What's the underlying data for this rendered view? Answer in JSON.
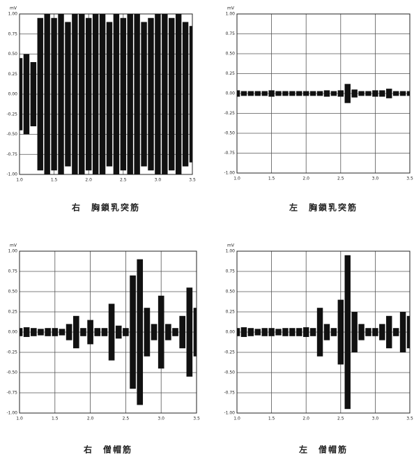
{
  "chart_data": [
    {
      "type": "envelope",
      "title": "右　胸鎖乳突筋",
      "y_unit": "mV",
      "x": [
        1.0,
        1.1,
        1.2,
        1.3,
        1.4,
        1.5,
        1.6,
        1.7,
        1.8,
        1.9,
        2.0,
        2.1,
        2.2,
        2.3,
        2.4,
        2.5,
        2.6,
        2.7,
        2.8,
        2.9,
        3.0,
        3.1,
        3.2,
        3.3,
        3.4,
        3.5
      ],
      "values": [
        0.45,
        0.5,
        0.4,
        0.95,
        1,
        0.95,
        1,
        0.9,
        1,
        1,
        0.95,
        1,
        1,
        0.9,
        1,
        0.95,
        1,
        1,
        0.9,
        0.95,
        1,
        1,
        0.95,
        1,
        0.9,
        0.85
      ],
      "color": "#111111",
      "xlim": [
        1.0,
        3.5
      ],
      "xticks": [
        {
          "value": 1,
          "label": "1.0"
        },
        1.5,
        {
          "value": 2,
          "label": "2.0"
        },
        2.5,
        {
          "value": 3,
          "label": "3.0"
        },
        3.5
      ],
      "ylim": [
        -1,
        1
      ],
      "yticks": [
        {
          "value": 1,
          "label": "1.00"
        },
        0.75,
        {
          "value": 0.5,
          "label": "0.50"
        },
        0.25,
        {
          "value": 0,
          "label": "0.00"
        },
        -0.25,
        {
          "value": -0.5,
          "label": "-0.50"
        },
        -0.75,
        {
          "value": -1,
          "label": "-1.00"
        }
      ],
      "grid": true
    },
    {
      "type": "envelope",
      "title": "左　胸鎖乳突筋",
      "y_unit": "mV",
      "x": [
        1.0,
        1.1,
        1.2,
        1.3,
        1.4,
        1.5,
        1.6,
        1.7,
        1.8,
        1.9,
        2.0,
        2.1,
        2.2,
        2.3,
        2.4,
        2.5,
        2.6,
        2.7,
        2.8,
        2.9,
        3.0,
        3.1,
        3.2,
        3.3,
        3.4,
        3.5
      ],
      "values": [
        0.04,
        0.03,
        0.03,
        0.03,
        0.03,
        0.04,
        0.03,
        0.03,
        0.03,
        0.03,
        0.03,
        0.03,
        0.03,
        0.04,
        0.03,
        0.04,
        0.12,
        0.05,
        0.03,
        0.03,
        0.04,
        0.04,
        0.06,
        0.03,
        0.03,
        0.03
      ],
      "color": "#111111",
      "xlim": [
        1.0,
        3.5
      ],
      "xticks": [
        {
          "value": 1,
          "label": "1.0"
        },
        1.5,
        {
          "value": 2,
          "label": "2.0"
        },
        2.5,
        {
          "value": 3,
          "label": "3.0"
        },
        3.5
      ],
      "ylim": [
        -1,
        1
      ],
      "yticks": [
        {
          "value": 1,
          "label": "1.00"
        },
        0.75,
        {
          "value": 0.5,
          "label": "0.50"
        },
        0.25,
        {
          "value": 0,
          "label": "0.00"
        },
        -0.25,
        {
          "value": -0.5,
          "label": "-0.50"
        },
        -0.75,
        {
          "value": -1,
          "label": "-1.00"
        }
      ],
      "grid": true
    },
    {
      "type": "envelope",
      "title": "右　僧帽筋",
      "y_unit": "mV",
      "x": [
        1.0,
        1.1,
        1.2,
        1.3,
        1.4,
        1.5,
        1.6,
        1.7,
        1.8,
        1.9,
        2.0,
        2.1,
        2.2,
        2.3,
        2.4,
        2.5,
        2.6,
        2.7,
        2.8,
        2.9,
        3.0,
        3.1,
        3.2,
        3.3,
        3.4,
        3.5
      ],
      "values": [
        0.05,
        0.06,
        0.05,
        0.04,
        0.05,
        0.05,
        0.04,
        0.1,
        0.2,
        0.05,
        0.15,
        0.05,
        0.05,
        0.35,
        0.08,
        0.05,
        0.7,
        0.9,
        0.3,
        0.1,
        0.45,
        0.1,
        0.05,
        0.2,
        0.55,
        0.3
      ],
      "color": "#111111",
      "xlim": [
        1.0,
        3.5
      ],
      "xticks": [
        {
          "value": 1,
          "label": "1.0"
        },
        1.5,
        {
          "value": 2,
          "label": "2.0"
        },
        2.5,
        {
          "value": 3,
          "label": "3.0"
        },
        3.5
      ],
      "ylim": [
        -1,
        1
      ],
      "yticks": [
        {
          "value": 1,
          "label": "1.00"
        },
        0.75,
        {
          "value": 0.5,
          "label": "0.50"
        },
        0.25,
        {
          "value": 0,
          "label": "0.00"
        },
        -0.25,
        {
          "value": -0.5,
          "label": "-0.50"
        },
        -0.75,
        {
          "value": -1,
          "label": "-1.00"
        }
      ],
      "grid": true
    },
    {
      "type": "envelope",
      "title": "左　僧帽筋",
      "y_unit": "mV",
      "x": [
        1.0,
        1.1,
        1.2,
        1.3,
        1.4,
        1.5,
        1.6,
        1.7,
        1.8,
        1.9,
        2.0,
        2.1,
        2.2,
        2.3,
        2.4,
        2.5,
        2.6,
        2.7,
        2.8,
        2.9,
        3.0,
        3.1,
        3.2,
        3.3,
        3.4,
        3.5
      ],
      "values": [
        0.05,
        0.06,
        0.05,
        0.04,
        0.05,
        0.05,
        0.04,
        0.05,
        0.05,
        0.05,
        0.06,
        0.05,
        0.3,
        0.1,
        0.05,
        0.4,
        0.95,
        0.25,
        0.1,
        0.05,
        0.05,
        0.1,
        0.2,
        0.05,
        0.25,
        0.2
      ],
      "color": "#111111",
      "xlim": [
        1.0,
        3.5
      ],
      "xticks": [
        {
          "value": 1,
          "label": "1.0"
        },
        1.5,
        {
          "value": 2,
          "label": "2.0"
        },
        2.5,
        {
          "value": 3,
          "label": "3.0"
        },
        3.5
      ],
      "ylim": [
        -1,
        1
      ],
      "yticks": [
        {
          "value": 1,
          "label": "1.00"
        },
        0.75,
        {
          "value": 0.5,
          "label": "0.50"
        },
        0.25,
        {
          "value": 0,
          "label": "0.00"
        },
        -0.25,
        {
          "value": -0.5,
          "label": "-0.50"
        },
        -0.75,
        {
          "value": -1,
          "label": "-1.00"
        }
      ],
      "grid": true
    }
  ]
}
